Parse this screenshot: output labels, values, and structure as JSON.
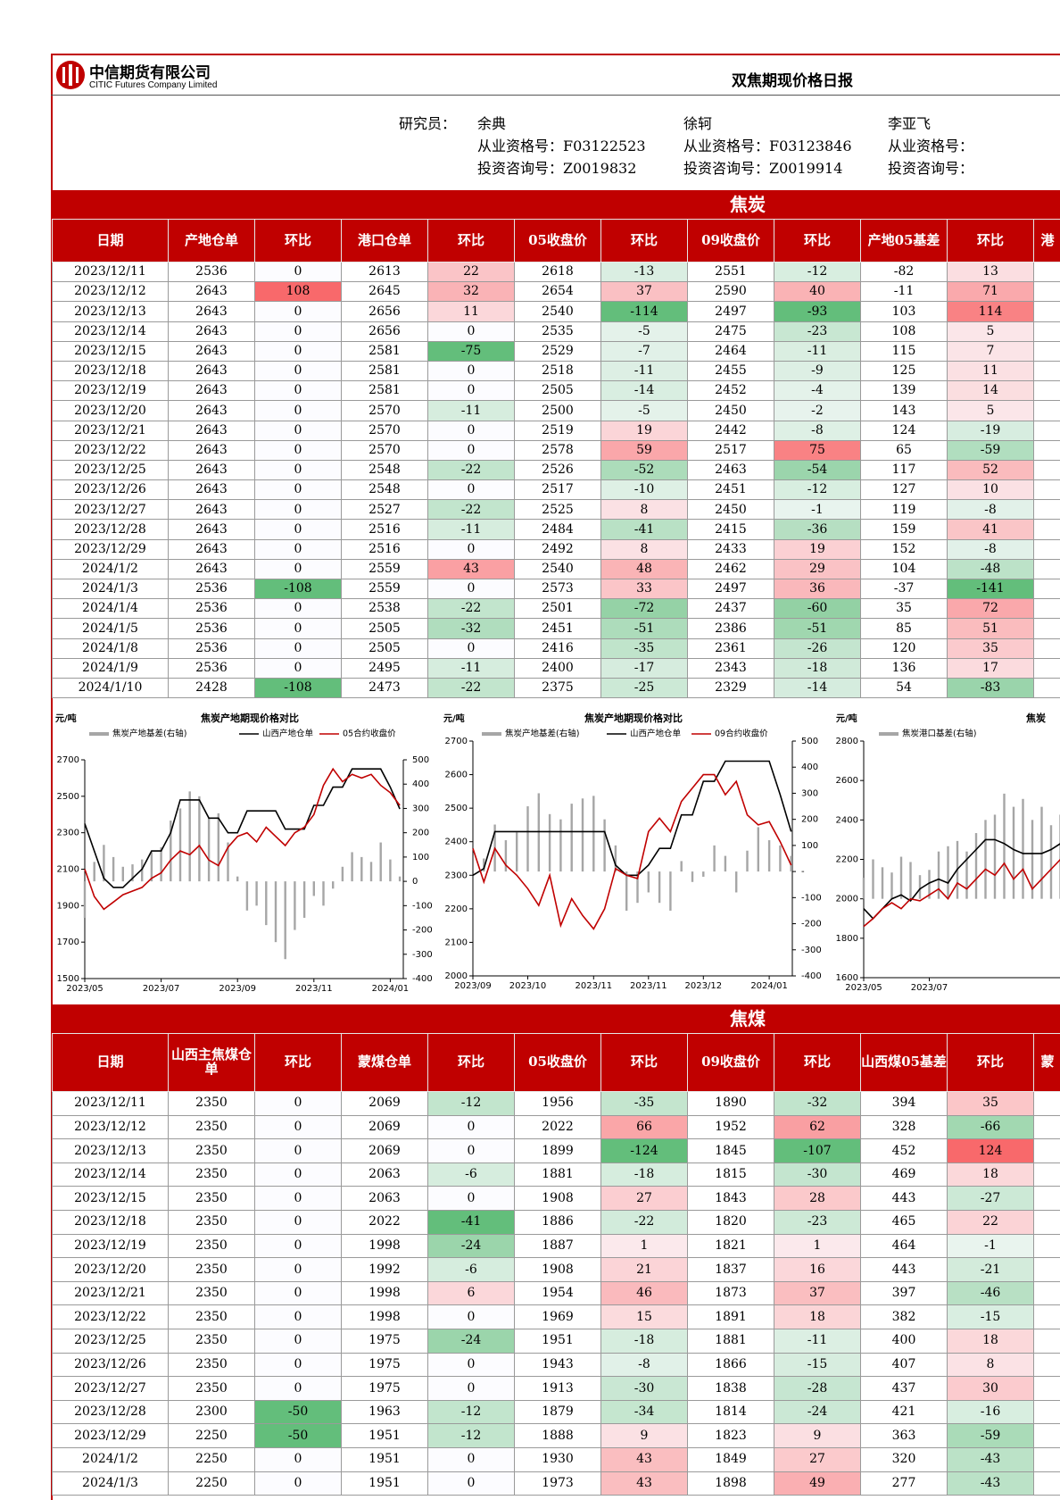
{
  "header": {
    "company_cn": "中信期货有限公司",
    "company_en": "CITIC Futures Company Limited",
    "report_title": "双焦期现价格日报"
  },
  "researchers": {
    "label": "研究员：",
    "people": [
      {
        "name": "余典",
        "qualification": "从业资格号：F03122523",
        "consulting": "投资咨询号：Z0019832"
      },
      {
        "name": "徐轲",
        "qualification": "从业资格号：F03123846",
        "consulting": "投资咨询号：Z0019914"
      },
      {
        "name": "李亚飞",
        "qualification": "从业资格号：",
        "consulting": "投资咨询号："
      }
    ]
  },
  "coke": {
    "section": "焦炭",
    "table": {
      "headers": [
        "日期",
        "产地仓单",
        "环比",
        "港口仓单",
        "环比",
        "05收盘价",
        "环比",
        "09收盘价",
        "环比",
        "产地05基差",
        "环比",
        "港"
      ],
      "rows": [
        [
          "2023/12/11",
          2536,
          0,
          2613,
          22,
          2618,
          -13,
          2551,
          -12,
          -82,
          13
        ],
        [
          "2023/12/12",
          2643,
          108,
          2645,
          32,
          2654,
          37,
          2590,
          40,
          -11,
          71
        ],
        [
          "2023/12/13",
          2643,
          0,
          2656,
          11,
          2540,
          -114,
          2497,
          -93,
          103,
          114
        ],
        [
          "2023/12/14",
          2643,
          0,
          2656,
          0,
          2535,
          -5,
          2475,
          -23,
          108,
          5
        ],
        [
          "2023/12/15",
          2643,
          0,
          2581,
          -75,
          2529,
          -7,
          2464,
          -11,
          115,
          7
        ],
        [
          "2023/12/18",
          2643,
          0,
          2581,
          0,
          2518,
          -11,
          2455,
          -9,
          125,
          11
        ],
        [
          "2023/12/19",
          2643,
          0,
          2581,
          0,
          2505,
          -14,
          2452,
          -4,
          139,
          14
        ],
        [
          "2023/12/20",
          2643,
          0,
          2570,
          -11,
          2500,
          -5,
          2450,
          -2,
          143,
          5
        ],
        [
          "2023/12/21",
          2643,
          0,
          2570,
          0,
          2519,
          19,
          2442,
          -8,
          124,
          -19
        ],
        [
          "2023/12/22",
          2643,
          0,
          2570,
          0,
          2578,
          59,
          2517,
          75,
          65,
          -59
        ],
        [
          "2023/12/25",
          2643,
          0,
          2548,
          -22,
          2526,
          -52,
          2463,
          -54,
          117,
          52
        ],
        [
          "2023/12/26",
          2643,
          0,
          2548,
          0,
          2517,
          -10,
          2451,
          -12,
          127,
          10
        ],
        [
          "2023/12/27",
          2643,
          0,
          2527,
          -22,
          2525,
          8,
          2450,
          -1,
          119,
          -8
        ],
        [
          "2023/12/28",
          2643,
          0,
          2516,
          -11,
          2484,
          -41,
          2415,
          -36,
          159,
          41
        ],
        [
          "2023/12/29",
          2643,
          0,
          2516,
          0,
          2492,
          8,
          2433,
          19,
          152,
          -8
        ],
        [
          "2024/1/2",
          2643,
          0,
          2559,
          43,
          2540,
          48,
          2462,
          29,
          104,
          -48
        ],
        [
          "2024/1/3",
          2536,
          -108,
          2559,
          0,
          2573,
          33,
          2497,
          36,
          -37,
          -141
        ],
        [
          "2024/1/4",
          2536,
          0,
          2538,
          -22,
          2501,
          -72,
          2437,
          -60,
          35,
          72
        ],
        [
          "2024/1/5",
          2536,
          0,
          2505,
          -32,
          2451,
          -51,
          2386,
          -51,
          85,
          51
        ],
        [
          "2024/1/8",
          2536,
          0,
          2505,
          0,
          2416,
          -35,
          2361,
          -26,
          120,
          35
        ],
        [
          "2024/1/9",
          2536,
          0,
          2495,
          -11,
          2400,
          -17,
          2343,
          -18,
          136,
          17
        ],
        [
          "2024/1/10",
          2428,
          -108,
          2473,
          -22,
          2375,
          -25,
          2329,
          -14,
          54,
          -83
        ]
      ]
    },
    "charts": [
      {
        "type": "line",
        "y_unit": "元/吨",
        "title": "焦炭产地期现价格对比",
        "categories": [
          "2023/05",
          null,
          null,
          null,
          null,
          null,
          null,
          null,
          "2023/07",
          null,
          null,
          null,
          null,
          null,
          null,
          null,
          "2023/09",
          null,
          null,
          null,
          null,
          null,
          null,
          null,
          "2023/11",
          null,
          null,
          null,
          null,
          null,
          null,
          null,
          "2024/01",
          null
        ],
        "ylim": [
          1500,
          2700
        ],
        "yticks": [
          1500,
          1700,
          1900,
          2100,
          2300,
          2500,
          2700
        ],
        "y2lim": [
          -400,
          500
        ],
        "y2ticks": [
          -400,
          -300,
          -200,
          -100,
          0,
          100,
          200,
          300,
          400,
          500
        ],
        "series": [
          {
            "name": "焦炭产地基差(右轴)",
            "type": "bar",
            "axis": "y2",
            "color": "#a6a6a6",
            "values": [
              -150,
              80,
              150,
              100,
              60,
              70,
              90,
              120,
              140,
              250,
              300,
              370,
              350,
              260,
              280,
              160,
              20,
              -120,
              -100,
              -180,
              -250,
              -320,
              -200,
              -150,
              -60,
              -100,
              -30,
              60,
              120,
              100,
              80,
              160,
              90,
              20
            ]
          },
          {
            "name": "山西产地仓单",
            "type": "line",
            "color": "#000000",
            "values": [
              2350,
              2200,
              2050,
              2000,
              2000,
              2050,
              2100,
              2200,
              2200,
              2300,
              2480,
              2480,
              2480,
              2380,
              2380,
              2300,
              2300,
              2420,
              2420,
              2420,
              2420,
              2320,
              2320,
              2320,
              2450,
              2450,
              2550,
              2550,
              2650,
              2650,
              2650,
              2650,
              2550,
              2430
            ]
          },
          {
            "name": "05合约收盘价",
            "type": "line",
            "color": "#c00000",
            "values": [
              2100,
              1950,
              1880,
              1920,
              1960,
              1980,
              2000,
              2050,
              2080,
              2150,
              2200,
              2180,
              2230,
              2150,
              2120,
              2220,
              2280,
              2300,
              2250,
              2330,
              2280,
              2230,
              2300,
              2330,
              2400,
              2560,
              2650,
              2580,
              2620,
              2600,
              2620,
              2560,
              2520,
              2450
            ]
          }
        ]
      },
      {
        "type": "line",
        "y_unit": "元/吨",
        "title": "焦炭产地期现价格对比",
        "categories": [
          "2023/09",
          null,
          null,
          null,
          null,
          "2023/10",
          null,
          null,
          null,
          null,
          null,
          "2023/11",
          null,
          null,
          null,
          null,
          "2023/11",
          null,
          null,
          null,
          null,
          "2023/12",
          null,
          null,
          null,
          null,
          null,
          "2024/01",
          null,
          null
        ],
        "ylim": [
          2000,
          2700
        ],
        "yticks": [
          2000,
          2100,
          2200,
          2300,
          2400,
          2500,
          2600,
          2700
        ],
        "y2lim": [
          -400,
          500
        ],
        "y2ticks": [
          -400,
          -300,
          -200,
          -100,
          {
            "value": 0,
            "label": "-"
          },
          100,
          200,
          300,
          400,
          500
        ],
        "series": [
          {
            "name": "焦炭产地基差(右轴)",
            "type": "bar",
            "axis": "y2",
            "color": "#a6a6a6",
            "values": [
              0,
              50,
              180,
              120,
              150,
              250,
              300,
              220,
              200,
              260,
              280,
              290,
              200,
              100,
              -150,
              -120,
              -80,
              -120,
              -150,
              40,
              -40,
              -20,
              100,
              60,
              -80,
              80,
              170,
              120,
              100,
              60
            ]
          },
          {
            "name": "山西产地仓单",
            "type": "line",
            "color": "#000000",
            "values": [
              2300,
              2320,
              2430,
              2430,
              2430,
              2430,
              2430,
              2430,
              2430,
              2430,
              2430,
              2430,
              2430,
              2330,
              2300,
              2300,
              2330,
              2380,
              2380,
              2480,
              2480,
              2580,
              2580,
              2640,
              2640,
              2640,
              2640,
              2640,
              2540,
              2430
            ]
          },
          {
            "name": "09合约收盘价",
            "type": "line",
            "color": "#c00000",
            "values": [
              2380,
              2280,
              2380,
              2330,
              2300,
              2260,
              2210,
              2300,
              2150,
              2230,
              2180,
              2140,
              2200,
              2320,
              2300,
              2290,
              2430,
              2470,
              2430,
              2520,
              2560,
              2600,
              2600,
              2540,
              2580,
              2480,
              2450,
              2460,
              2400,
              2330
            ]
          }
        ]
      },
      {
        "type": "line",
        "y_unit": "元/吨",
        "title": "焦炭",
        "categories": [
          "2023/05",
          null,
          null,
          null,
          null,
          null,
          null,
          "2023/07",
          null,
          null,
          null,
          null,
          null,
          null,
          null,
          null,
          null,
          null,
          null,
          null,
          null,
          null
        ],
        "ylim": [
          1600,
          2800
        ],
        "yticks": [
          1600,
          1800,
          2000,
          2200,
          2400,
          2600,
          2800
        ],
        "y2lim": [
          -300,
          600
        ],
        "series": [
          {
            "name": "焦炭港口基差(右轴)",
            "type": "bar",
            "axis": "y2",
            "color": "#a6a6a6",
            "values": [
              80,
              150,
              120,
              100,
              160,
              140,
              90,
              110,
              180,
              200,
              220,
              180,
              250,
              300,
              320,
              400,
              350,
              380,
              300,
              350,
              280,
              320
            ]
          },
          {
            "type": "line",
            "color": "#000000",
            "values": [
              1950,
              1900,
              1950,
              2000,
              2020,
              1990,
              2050,
              2080,
              2100,
              2080,
              2150,
              2200,
              2250,
              2300,
              2300,
              2280,
              2250,
              2230,
              2230,
              2230,
              2250,
              2280
            ]
          },
          {
            "type": "line",
            "color": "#c00000",
            "values": [
              1860,
              1900,
              1950,
              1980,
              1950,
              2000,
              1990,
              2020,
              2050,
              2000,
              2080,
              2050,
              2100,
              2150,
              2120,
              2180,
              2100,
              2150,
              2050,
              2100,
              2150,
              2200
            ]
          }
        ]
      }
    ]
  },
  "coal": {
    "section": "焦煤",
    "table": {
      "headers": [
        "日期",
        "山西主焦煤仓单",
        "环比",
        "蒙煤仓单",
        "环比",
        "05收盘价",
        "环比",
        "09收盘价",
        "环比",
        "山西煤05基差",
        "环比",
        "蒙"
      ],
      "rows": [
        [
          "2023/12/11",
          2350,
          0,
          2069,
          -12,
          1956,
          -35,
          1890,
          -32,
          394,
          35
        ],
        [
          "2023/12/12",
          2350,
          0,
          2069,
          0,
          2022,
          66,
          1952,
          62,
          328,
          -66
        ],
        [
          "2023/12/13",
          2350,
          0,
          2069,
          0,
          1899,
          -124,
          1845,
          -107,
          452,
          124
        ],
        [
          "2023/12/14",
          2350,
          0,
          2063,
          -6,
          1881,
          -18,
          1815,
          -30,
          469,
          18
        ],
        [
          "2023/12/15",
          2350,
          0,
          2063,
          0,
          1908,
          27,
          1843,
          28,
          443,
          -27
        ],
        [
          "2023/12/18",
          2350,
          0,
          2022,
          -41,
          1886,
          -22,
          1820,
          -23,
          465,
          22
        ],
        [
          "2023/12/19",
          2350,
          0,
          1998,
          -24,
          1887,
          1,
          1821,
          1,
          464,
          -1
        ],
        [
          "2023/12/20",
          2350,
          0,
          1992,
          -6,
          1908,
          21,
          1837,
          16,
          443,
          -21
        ],
        [
          "2023/12/21",
          2350,
          0,
          1998,
          6,
          1954,
          46,
          1873,
          37,
          397,
          -46
        ],
        [
          "2023/12/22",
          2350,
          0,
          1998,
          0,
          1969,
          15,
          1891,
          18,
          382,
          -15
        ],
        [
          "2023/12/25",
          2350,
          0,
          1975,
          -24,
          1951,
          -18,
          1881,
          -11,
          400,
          18
        ],
        [
          "2023/12/26",
          2350,
          0,
          1975,
          0,
          1943,
          -8,
          1866,
          -15,
          407,
          8
        ],
        [
          "2023/12/27",
          2350,
          0,
          1975,
          0,
          1913,
          -30,
          1838,
          -28,
          437,
          30
        ],
        [
          "2023/12/28",
          2300,
          -50,
          1963,
          -12,
          1879,
          -34,
          1814,
          -24,
          421,
          -16
        ],
        [
          "2023/12/29",
          2250,
          -50,
          1951,
          -12,
          1888,
          9,
          1823,
          9,
          363,
          -59
        ],
        [
          "2024/1/2",
          2250,
          0,
          1951,
          0,
          1930,
          43,
          1849,
          27,
          320,
          -43
        ],
        [
          "2024/1/3",
          2250,
          0,
          1951,
          0,
          1973,
          43,
          1898,
          49,
          277,
          -43
        ]
      ]
    }
  }
}
